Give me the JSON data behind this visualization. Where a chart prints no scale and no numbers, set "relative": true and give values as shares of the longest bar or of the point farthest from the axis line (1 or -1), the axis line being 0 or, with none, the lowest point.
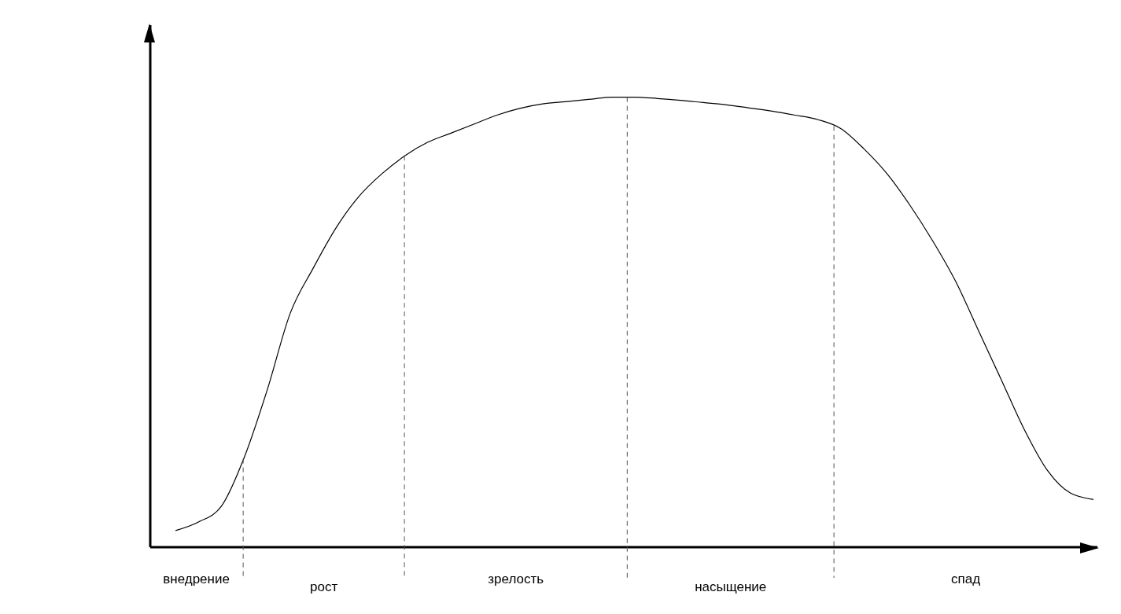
{
  "chart_data": {
    "type": "line",
    "relative": true,
    "categories": [
      null,
      null,
      null,
      null,
      null,
      null,
      null,
      null,
      null,
      null,
      null,
      null,
      null,
      null,
      null,
      null,
      null,
      null,
      null,
      null,
      null,
      null,
      null,
      null,
      null,
      null,
      null,
      null,
      null,
      null,
      null,
      null,
      null,
      null,
      null,
      null,
      null,
      null,
      null,
      null,
      null
    ],
    "series": [
      {
        "color": "#000000",
        "values": [
          0.037,
          0.056,
          0.091,
          0.2,
          0.35,
          0.52,
          0.62,
          0.71,
          0.78,
          0.83,
          0.87,
          0.9,
          0.92,
          0.94,
          0.96,
          0.975,
          0.985,
          0.99,
          0.995,
          1,
          1,
          0.997,
          0.993,
          0.988,
          0.983,
          0.976,
          0.969,
          0.96,
          0.95,
          0.93,
          0.885,
          0.83,
          0.76,
          0.68,
          0.59,
          0.48,
          0.37,
          0.26,
          0.17,
          0.12,
          0.106
        ]
      }
    ],
    "annotations": [
      "внедрение",
      "рост",
      "зрелость",
      "насыщение",
      "спад"
    ],
    "line_style": "solid"
  }
}
